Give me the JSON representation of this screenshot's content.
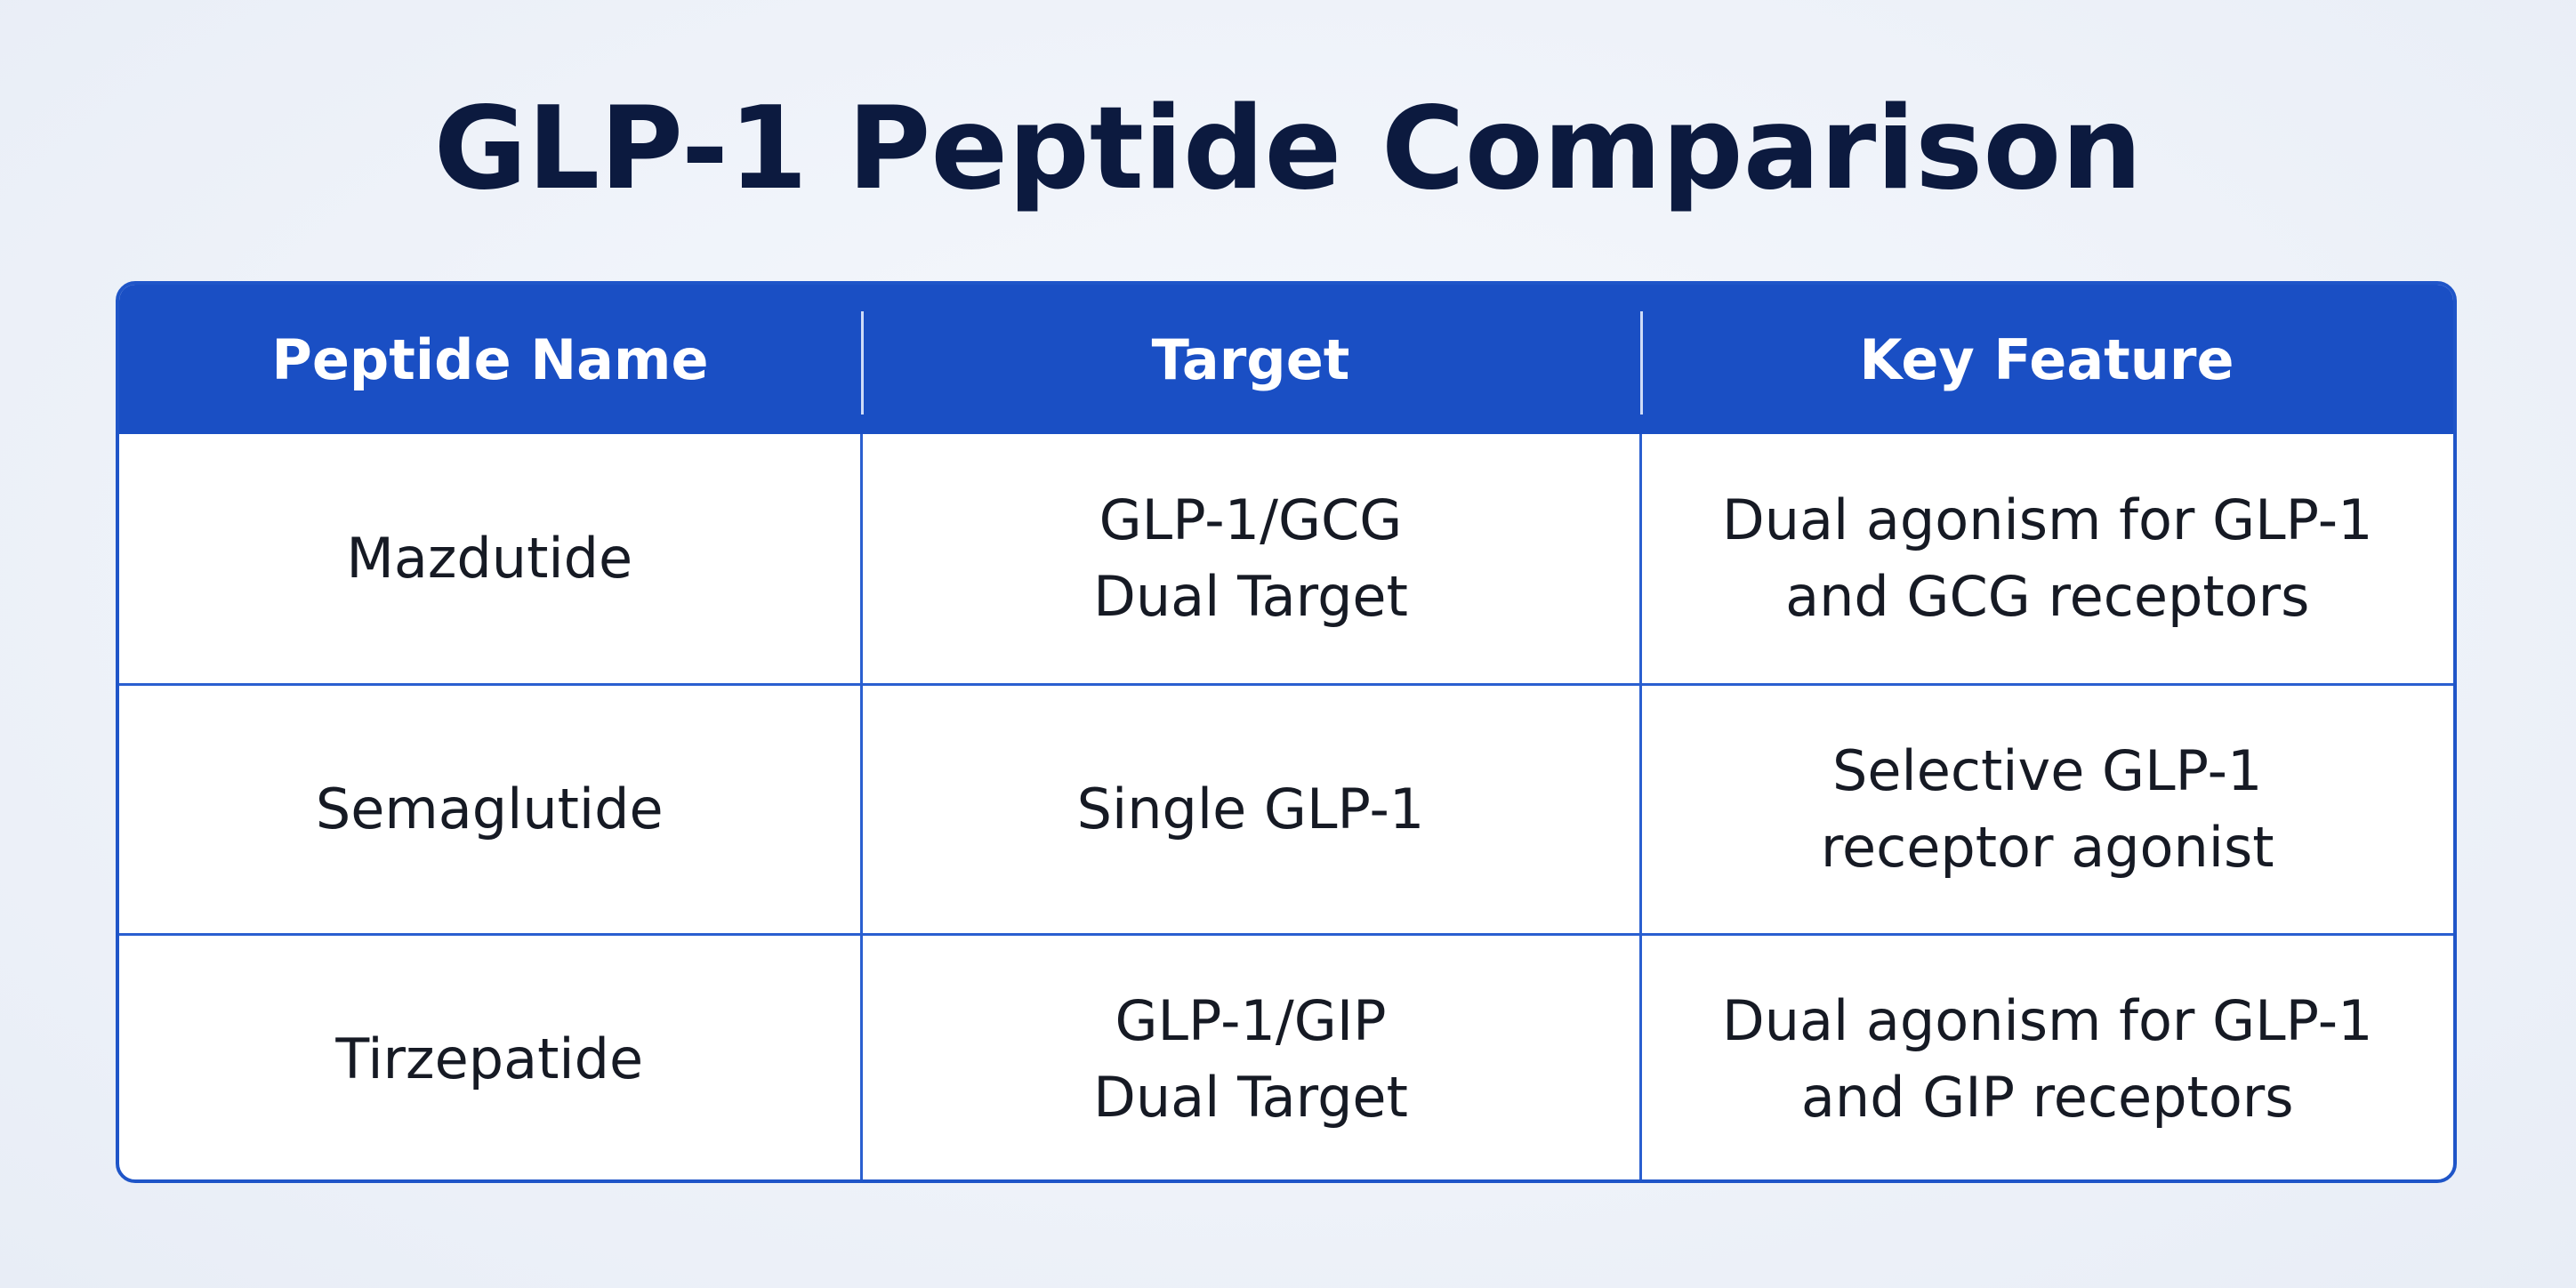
{
  "title": "GLP-1 Peptide Comparison",
  "table": {
    "headers": [
      "Peptide Name",
      "Target",
      "Key Feature"
    ],
    "rows": [
      {
        "name": "Mazdutide",
        "target": [
          "GLP-1/GCG",
          "Dual Target"
        ],
        "feature": [
          "Dual agonism for GLP-1",
          "and GCG receptors"
        ]
      },
      {
        "name": "Semaglutide",
        "target": [
          "Single GLP-1"
        ],
        "feature": [
          "Selective GLP-1",
          "receptor agonist"
        ]
      },
      {
        "name": "Tirzepatide",
        "target": [
          "GLP-1/GIP",
          "Dual Target"
        ],
        "feature": [
          "Dual agonism for GLP-1",
          "and GIP receptors"
        ]
      }
    ]
  },
  "colors": {
    "header_background": "#1a4fc4",
    "border": "#2a5fd0",
    "title_text": "#0c1a3f",
    "page_background": "#eef2f9"
  }
}
